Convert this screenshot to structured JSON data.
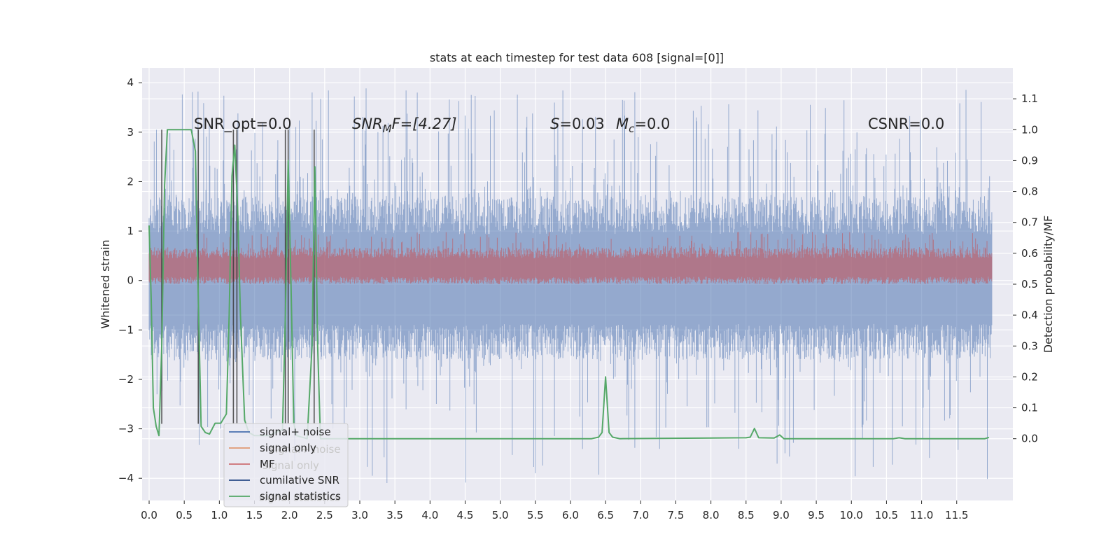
{
  "chart_data": {
    "type": "line",
    "title": "stats at each timestep for test data 608 [signal=[0]]",
    "ylabel": "Whitened strain",
    "ylabel_right": "Detection probability/MF",
    "xlim": [
      -0.1,
      12.3
    ],
    "ylim": [
      -4.45,
      4.3
    ],
    "ylim_right": [
      -0.2,
      1.2
    ],
    "x_ticks": [
      0.0,
      0.5,
      1.0,
      1.5,
      2.0,
      2.5,
      3.0,
      3.5,
      4.0,
      4.5,
      5.0,
      5.5,
      6.0,
      6.5,
      7.0,
      7.5,
      8.0,
      8.5,
      9.0,
      9.5,
      10.0,
      10.5,
      11.0,
      11.5
    ],
    "x_tick_labels": [
      "0.0",
      "0.5",
      "1.0",
      "1.5",
      "2.0",
      "2.5",
      "3.0",
      "3.5",
      "4.0",
      "4.5",
      "5.0",
      "5.5",
      "6.0",
      "6.5",
      "7.0",
      "7.5",
      "8.0",
      "8.5",
      "9.0",
      "9.5",
      "10.0",
      "10.5",
      "11.0",
      "11.5"
    ],
    "y_ticks": [
      4,
      3,
      2,
      1,
      0,
      -1,
      -2,
      -3,
      -4
    ],
    "y_tick_labels": [
      "4",
      "3",
      "2",
      "1",
      "0",
      "−1",
      "−2",
      "−3",
      "−4"
    ],
    "y_right_ticks": [
      1.1,
      1.0,
      0.9,
      0.8,
      0.7,
      0.6,
      0.5,
      0.4,
      0.3,
      0.2,
      0.1,
      0.0
    ],
    "y_right_tick_labels": [
      "1.1",
      "1.0",
      "0.9",
      "0.8",
      "0.7",
      "0.6",
      "0.5",
      "0.4",
      "0.3",
      "0.2",
      "0.1",
      "0.0"
    ],
    "grid": true,
    "legend_position": "lower-left",
    "annotations": {
      "snr_opt": "SNR_opt=0.0",
      "snr_mf_main": "SNR",
      "snr_mf_sub": "M",
      "snr_mf_rest": "F=[4.27]",
      "s_main": "S",
      "s_rest": "=0.03",
      "mc_main": "M",
      "mc_sub": "c",
      "mc_rest": "=0.0",
      "csnr": "CSNR=0.0"
    },
    "series": [
      {
        "name": "signal+ noise",
        "color": "#4c72b0",
        "axis": "left",
        "envelope": {
          "x_range": [
            0.0,
            12.0
          ],
          "typical_low": -1.6,
          "typical_high": 1.7,
          "peak_high": 3.9,
          "peak_low": -4.1
        }
      },
      {
        "name": "signal only",
        "color": "#dd8452",
        "axis": "left",
        "points": [
          [
            0.0,
            0.0
          ],
          [
            12.0,
            0.0
          ]
        ]
      },
      {
        "name": "MF",
        "color": "#c44e52",
        "axis": "right",
        "envelope": {
          "x_range": [
            0.0,
            12.0
          ],
          "typical_low": 0.5,
          "typical_high": 0.62,
          "peak_high": 0.67
        }
      },
      {
        "name": "cumilative SNR",
        "color": "#2d4f8a",
        "axis": "left",
        "points": [
          [
            0.0,
            0.0
          ],
          [
            12.0,
            0.0
          ]
        ]
      },
      {
        "name": "signal statistics",
        "color": "#55a868",
        "axis": "right",
        "points": [
          [
            0.0,
            0.69
          ],
          [
            0.03,
            0.45
          ],
          [
            0.06,
            0.1
          ],
          [
            0.1,
            0.04
          ],
          [
            0.14,
            0.01
          ],
          [
            0.18,
            0.3
          ],
          [
            0.22,
            0.82
          ],
          [
            0.26,
            1.0
          ],
          [
            0.6,
            1.0
          ],
          [
            0.66,
            0.93
          ],
          [
            0.7,
            0.45
          ],
          [
            0.74,
            0.04
          ],
          [
            0.8,
            0.02
          ],
          [
            0.86,
            0.015
          ],
          [
            0.94,
            0.05
          ],
          [
            1.02,
            0.05
          ],
          [
            1.1,
            0.08
          ],
          [
            1.14,
            0.4
          ],
          [
            1.18,
            0.85
          ],
          [
            1.22,
            0.95
          ],
          [
            1.26,
            0.75
          ],
          [
            1.3,
            0.4
          ],
          [
            1.36,
            0.06
          ],
          [
            1.42,
            0.02
          ],
          [
            1.5,
            0.01
          ],
          [
            1.7,
            0.01
          ],
          [
            1.9,
            0.03
          ],
          [
            1.94,
            0.4
          ],
          [
            1.98,
            0.9
          ],
          [
            2.02,
            0.5
          ],
          [
            2.06,
            0.05
          ],
          [
            2.1,
            0.01
          ],
          [
            2.25,
            0.0
          ],
          [
            2.32,
            0.3
          ],
          [
            2.36,
            0.88
          ],
          [
            2.4,
            0.3
          ],
          [
            2.44,
            0.0
          ],
          [
            6.3,
            0.0
          ],
          [
            6.4,
            0.005
          ],
          [
            6.45,
            0.02
          ],
          [
            6.5,
            0.2
          ],
          [
            6.55,
            0.02
          ],
          [
            6.6,
            0.005
          ],
          [
            6.7,
            0.0
          ],
          [
            8.5,
            0.003
          ],
          [
            8.56,
            0.005
          ],
          [
            8.62,
            0.033
          ],
          [
            8.68,
            0.003
          ],
          [
            8.9,
            0.002
          ],
          [
            8.98,
            0.012
          ],
          [
            9.04,
            0.0
          ],
          [
            10.6,
            0.0
          ],
          [
            10.68,
            0.003
          ],
          [
            10.76,
            0.0
          ],
          [
            11.9,
            0.0
          ],
          [
            11.96,
            0.004
          ]
        ]
      }
    ],
    "vertical_lines": [
      0.18,
      0.7,
      1.2,
      1.25,
      1.94,
      1.98,
      2.35
    ]
  }
}
